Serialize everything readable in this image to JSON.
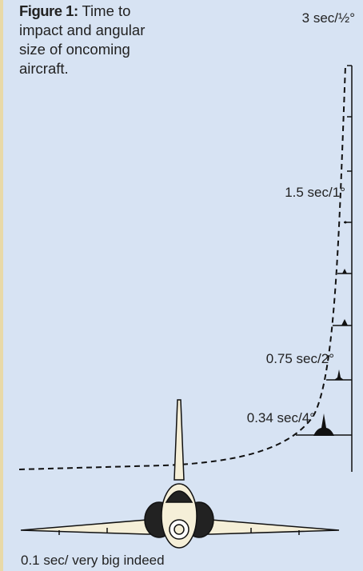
{
  "caption": {
    "label": "Figure 1:",
    "text": "Time to impact and angular size of oncoming aircraft."
  },
  "labels": [
    "3 sec/½°",
    "1.5 sec/1°",
    "0.75 sec/2°",
    "0.34 sec/4°",
    "0.1 sec/ very big indeed"
  ]
}
